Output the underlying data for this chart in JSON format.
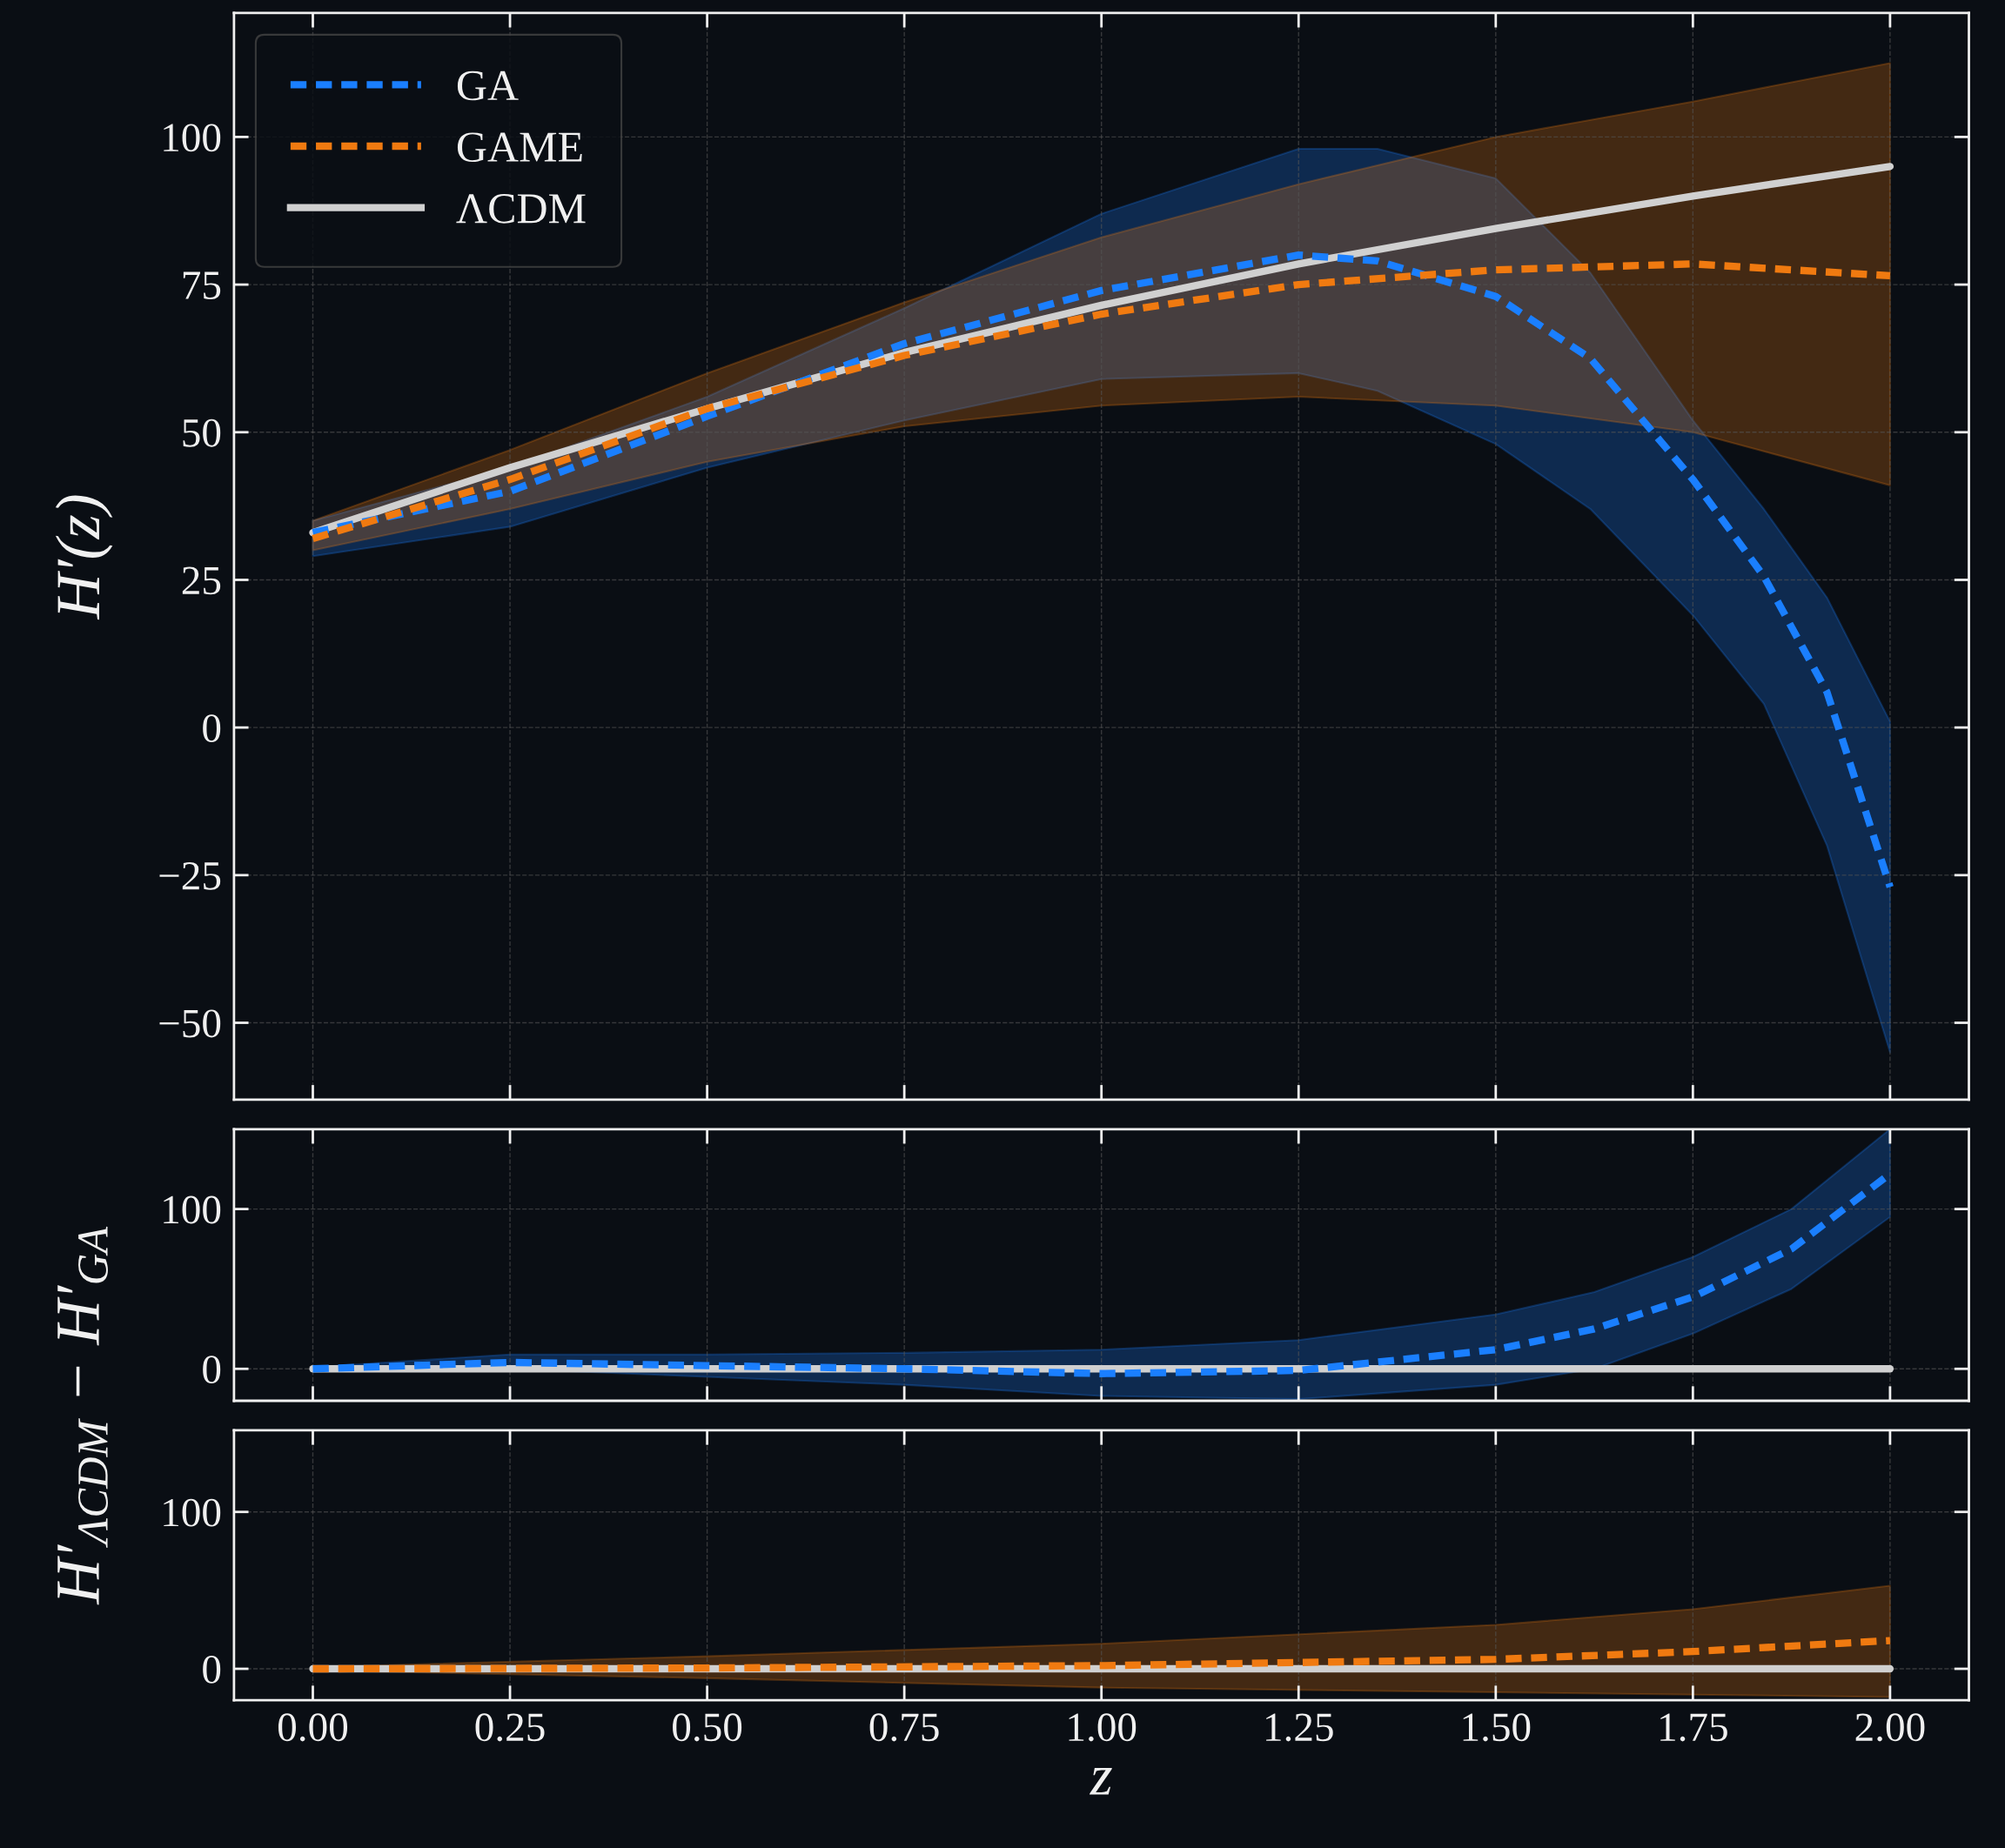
{
  "chart_data": [
    {
      "type": "line",
      "ylabel": "H′(z)",
      "xlim": [
        -0.1,
        2.1
      ],
      "ylim": [
        -63,
        121
      ],
      "xticks": [
        0.0,
        0.25,
        0.5,
        0.75,
        1.0,
        1.25,
        1.5,
        1.75,
        2.0
      ],
      "yticks": [
        {
          "value": -50,
          "label": "−50"
        },
        {
          "value": -25,
          "label": "−25"
        },
        0,
        25,
        50,
        75,
        100
      ],
      "tick_labels": "y",
      "grid": true,
      "legend": "top left",
      "series": [
        {
          "name": "GA",
          "color": "#1a7fff",
          "line_style": "dashed",
          "x": [
            0,
            0.25,
            0.5,
            0.75,
            1.0,
            1.25,
            1.35,
            1.5,
            1.62,
            1.75,
            1.84,
            1.92,
            2.0
          ],
          "values": [
            33,
            40,
            52.7,
            65,
            74,
            80,
            79,
            73,
            62.5,
            42,
            25.6,
            6,
            -27
          ],
          "lower": [
            29,
            34,
            44,
            52,
            59,
            60,
            57,
            48,
            37,
            19,
            4,
            -20,
            -55
          ],
          "upper": [
            35,
            44,
            56,
            71,
            87,
            98,
            98,
            93,
            77,
            52,
            37,
            22,
            1
          ]
        },
        {
          "name": "GAME",
          "color": "#f07a10",
          "line_style": "dashed",
          "x": [
            0,
            0.25,
            0.5,
            0.75,
            1.0,
            1.25,
            1.5,
            1.75,
            2.0
          ],
          "values": [
            32,
            42,
            54,
            63,
            70,
            75,
            77.5,
            78.5,
            76.5
          ],
          "lower": [
            30,
            37,
            45,
            51,
            54.5,
            56,
            54.5,
            50,
            41
          ],
          "upper": [
            35,
            47,
            60,
            72,
            83,
            92,
            100,
            106,
            112.5
          ]
        },
        {
          "name": "ΛCDM",
          "color": "#d0d0d0",
          "line_style": "solid",
          "x": [
            0,
            0.25,
            0.5,
            0.75,
            1.0,
            1.25,
            1.5,
            1.75,
            2.0
          ],
          "values": [
            33,
            44,
            54,
            63.5,
            71.5,
            78.5,
            84.5,
            90,
            95
          ]
        }
      ]
    },
    {
      "type": "line",
      "ylabel": "H′$_{ΛCDM}$ − H′$_{GA}$",
      "xlim": [
        -0.1,
        2.1
      ],
      "ylim": [
        -20,
        150
      ],
      "xticks": [
        0.0,
        0.25,
        0.5,
        0.75,
        1.0,
        1.25,
        1.5,
        1.75,
        2.0
      ],
      "yticks": [
        0,
        100
      ],
      "tick_labels": "y",
      "grid": true,
      "series": [
        {
          "color": "#1a7fff",
          "line_style": "dashed",
          "x": [
            0,
            0.25,
            0.5,
            0.75,
            1.0,
            1.25,
            1.5,
            1.625,
            1.75,
            1.875,
            2.0
          ],
          "values": [
            0,
            4,
            2,
            0,
            -3,
            -1,
            12,
            25,
            45,
            75,
            122
          ],
          "lower": [
            -1,
            0,
            -5,
            -10,
            -17,
            -19,
            -10,
            0,
            22,
            50,
            95
          ],
          "upper": [
            1,
            9,
            9,
            10,
            12,
            18,
            34,
            48,
            70,
            100,
            150
          ]
        },
        {
          "color": "#d0d0d0",
          "line_style": "solid",
          "x": [
            0,
            2.0
          ],
          "values": [
            0,
            0
          ]
        }
      ]
    },
    {
      "type": "line",
      "xlabel": "z",
      "xlim": [
        -0.1,
        2.1
      ],
      "ylim": [
        -20,
        152
      ],
      "xticks": [
        {
          "value": 0.0,
          "label": "0.00"
        },
        0.25,
        {
          "value": 0.5,
          "label": "0.50"
        },
        0.75,
        {
          "value": 1.0,
          "label": "1.00"
        },
        1.25,
        {
          "value": 1.5,
          "label": "1.50"
        },
        1.75,
        {
          "value": 2.0,
          "label": "2.00"
        }
      ],
      "yticks": [
        0,
        100
      ],
      "grid": true,
      "series": [
        {
          "color": "#f07a10",
          "line_style": "dashed",
          "x": [
            0,
            0.5,
            1.0,
            1.5,
            1.75,
            2.0
          ],
          "values": [
            0,
            0.5,
            2,
            6,
            11,
            18
          ],
          "lower": [
            -1,
            -6,
            -12,
            -15,
            -16.5,
            -18
          ],
          "upper": [
            1,
            8,
            16,
            28,
            38,
            53
          ]
        },
        {
          "color": "#d0d0d0",
          "line_style": "solid",
          "x": [
            0,
            2.0
          ],
          "values": [
            0,
            0
          ]
        }
      ]
    }
  ]
}
